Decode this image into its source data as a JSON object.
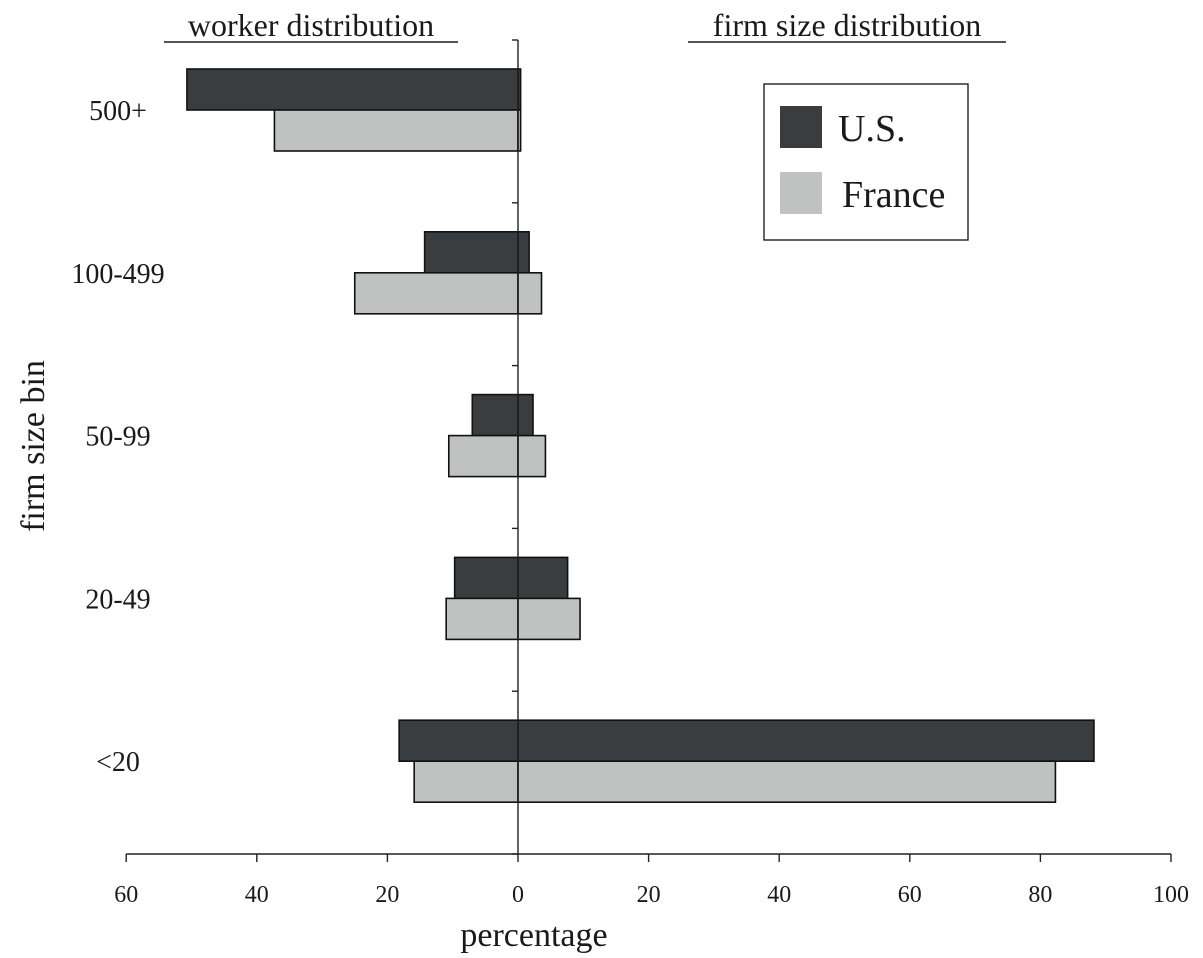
{
  "chart_data": {
    "type": "bar",
    "orientation": "horizontal",
    "panels": [
      {
        "title": "worker distribution",
        "direction": "left"
      },
      {
        "title": "firm size distribution",
        "direction": "right"
      }
    ],
    "ylabel": "firm size bin",
    "xlabel": "percentage",
    "categories": [
      "500+",
      "100-499",
      "50-99",
      "20-49",
      "<20"
    ],
    "xlim_left": [
      0,
      60
    ],
    "xlim_right": [
      0,
      100
    ],
    "x_ticks_left": [
      "60",
      "40",
      "20"
    ],
    "x_ticks_right": [
      "0",
      "20",
      "40",
      "60",
      "80",
      "100"
    ],
    "series": [
      {
        "name": "U.S.",
        "color": "#3a3d40",
        "worker_distribution": [
          50.7,
          14.3,
          7.0,
          9.7,
          18.2
        ],
        "firm_size_distribution": [
          0.4,
          1.7,
          2.3,
          7.6,
          88.2
        ]
      },
      {
        "name": "France",
        "color": "#c0c2c2",
        "worker_distribution": [
          37.3,
          25.0,
          10.6,
          11.0,
          15.9
        ],
        "firm_size_distribution": [
          0.4,
          3.6,
          4.2,
          9.5,
          82.3
        ]
      }
    ],
    "legend": {
      "placement": "top-right",
      "entries": [
        "U.S.",
        "France"
      ]
    },
    "grid": false
  }
}
